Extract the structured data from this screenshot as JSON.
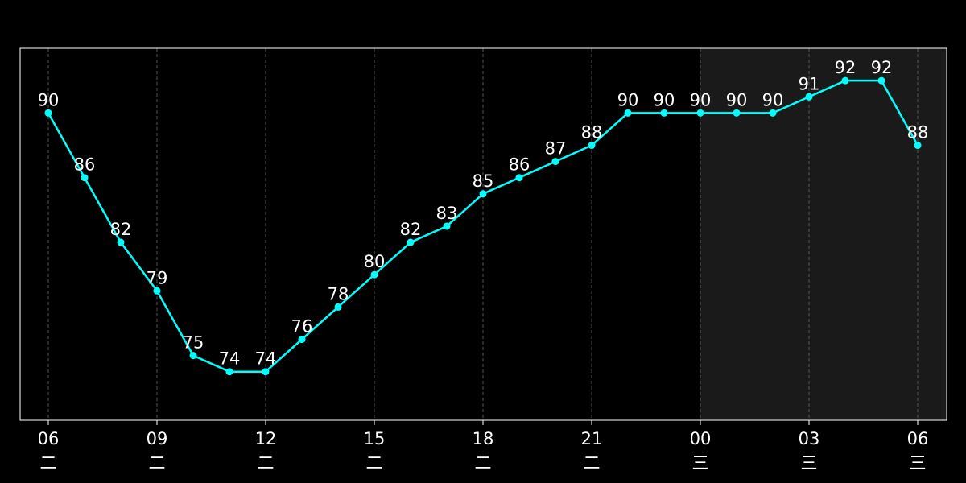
{
  "chart_data": {
    "type": "line",
    "title": "",
    "xlabel": "",
    "ylabel": "",
    "x": [
      "06",
      "07",
      "08",
      "09",
      "10",
      "11",
      "12",
      "13",
      "14",
      "15",
      "16",
      "17",
      "18",
      "19",
      "20",
      "21",
      "22",
      "23",
      "00",
      "01",
      "02",
      "03",
      "04",
      "05",
      "06"
    ],
    "x_ticks": [
      {
        "index": 0,
        "label": "06",
        "day": "二"
      },
      {
        "index": 3,
        "label": "09",
        "day": "二"
      },
      {
        "index": 6,
        "label": "12",
        "day": "二"
      },
      {
        "index": 9,
        "label": "15",
        "day": "二"
      },
      {
        "index": 12,
        "label": "18",
        "day": "二"
      },
      {
        "index": 15,
        "label": "21",
        "day": "二"
      },
      {
        "index": 18,
        "label": "00",
        "day": "三"
      },
      {
        "index": 21,
        "label": "03",
        "day": "三"
      },
      {
        "index": 24,
        "label": "06",
        "day": "三"
      }
    ],
    "series": [
      {
        "values": [
          90,
          86,
          82,
          79,
          75,
          74,
          74,
          76,
          78,
          80,
          82,
          83,
          85,
          86,
          87,
          88,
          90,
          90,
          90,
          90,
          90,
          91,
          92,
          92,
          88
        ]
      }
    ],
    "ylim": [
      71,
      94
    ],
    "grid": "vertical-dashed",
    "highlight_region": {
      "from_index": 18,
      "to_index": 24
    },
    "colors": {
      "background": "#000000",
      "line": "#00ffff",
      "text": "#ffffff",
      "axes": "#ffffff",
      "grid": "#555555",
      "highlight": "#1a1a1a"
    }
  }
}
